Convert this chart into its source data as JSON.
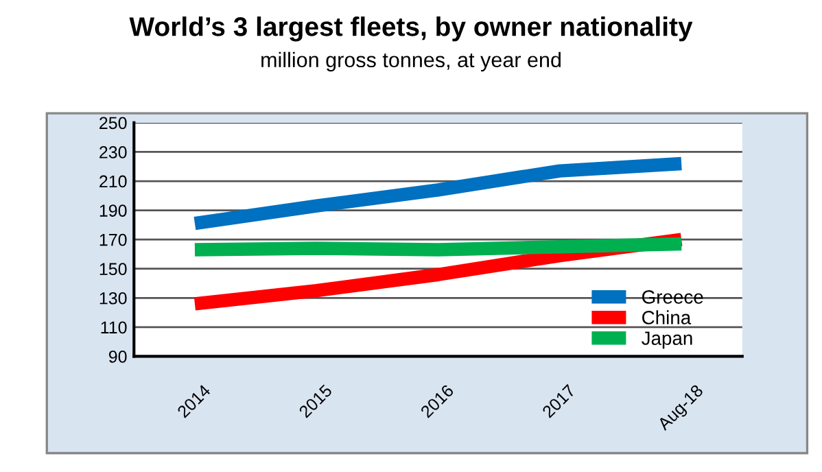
{
  "chart_data": {
    "type": "line",
    "title": "World’s 3 largest fleets, by owner nationality",
    "subtitle": "million gross tonnes, at year end",
    "categories": [
      "2014",
      "2015",
      "2016",
      "2017",
      "Aug-18"
    ],
    "series": [
      {
        "name": "Greece",
        "color": "#0070c0",
        "values": [
          181,
          193,
          204,
          217,
          222
        ]
      },
      {
        "name": "China",
        "color": "#ff0000",
        "values": [
          126,
          135,
          146,
          159,
          170
        ]
      },
      {
        "name": "Japan",
        "color": "#00b050",
        "values": [
          163,
          164,
          163,
          165,
          167
        ]
      }
    ],
    "ylim": [
      90,
      250
    ],
    "yticks": [
      90,
      110,
      130,
      150,
      170,
      190,
      210,
      230,
      250
    ],
    "grid": "y",
    "legend": "bottom right",
    "marker": "none",
    "line_style": "solid"
  }
}
